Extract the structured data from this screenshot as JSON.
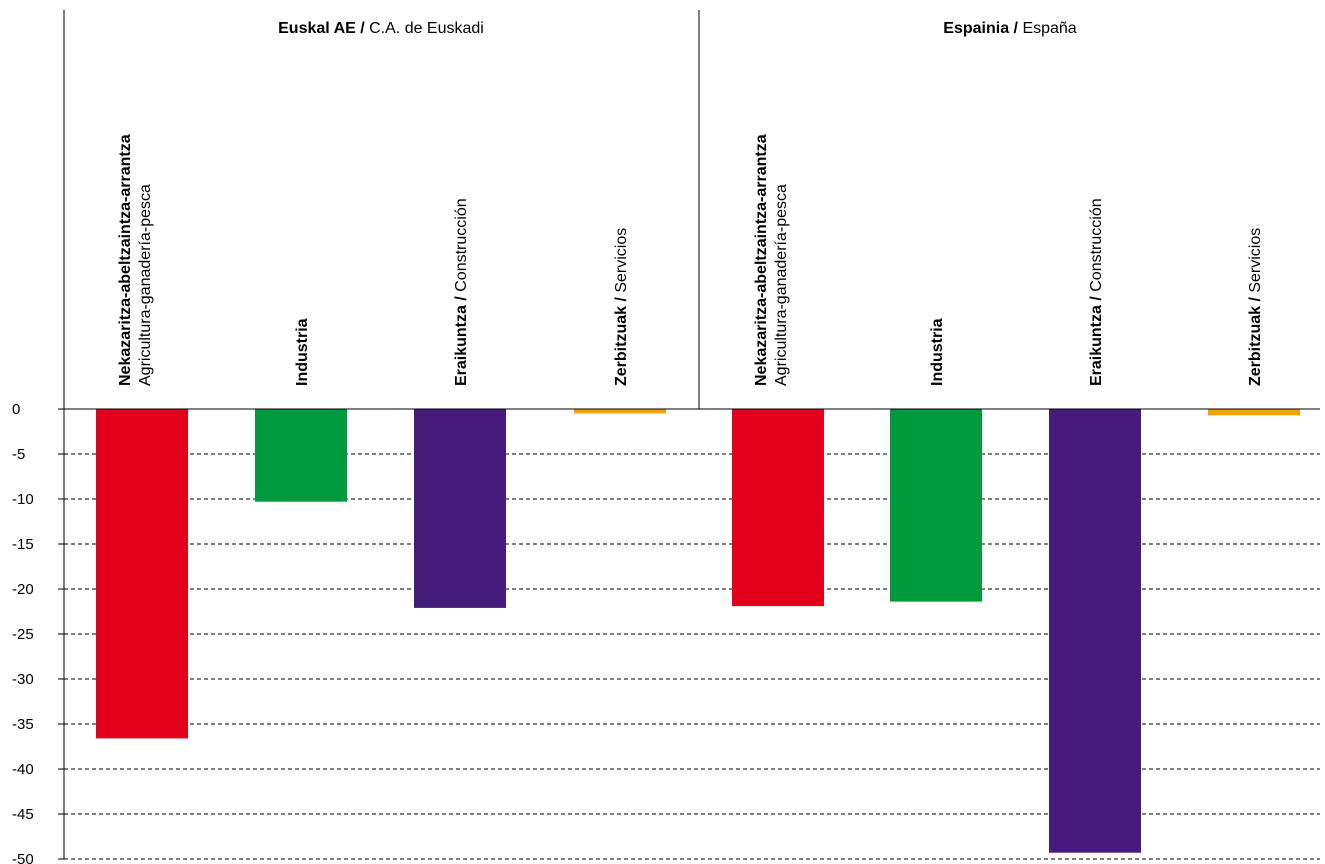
{
  "chart_data": {
    "type": "bar",
    "ylim": [
      -50,
      0
    ],
    "yticks": [
      0,
      -5,
      -10,
      -15,
      -20,
      -25,
      -30,
      -35,
      -40,
      -45,
      -50
    ],
    "grid": true,
    "groups": [
      {
        "title_bold": "Euskal AE /",
        "title_normal": "C.A. de Euskadi",
        "bars": [
          {
            "label_bold": "Nekazaritza-abeltzaintza-arrantza",
            "label_normal": "Agricultura-ganadería-pesca",
            "value": -36.6,
            "color": "#e2001a"
          },
          {
            "label_bold": "Industria",
            "label_normal": "",
            "value": -10.3,
            "color": "#009a3e"
          },
          {
            "label_bold": "Eraikuntza /",
            "label_normal": "Construcción",
            "value": -22.1,
            "color": "#451c7c"
          },
          {
            "label_bold": "Zerbitzuak /",
            "label_normal": "Servicios",
            "value": -0.5,
            "color": "#f5a200"
          }
        ]
      },
      {
        "title_bold": "Espainia /",
        "title_normal": "España",
        "bars": [
          {
            "label_bold": "Nekazaritza-abeltzaintza-arrantza",
            "label_normal": "Agricultura-ganadería-pesca",
            "value": -21.9,
            "color": "#e2001a"
          },
          {
            "label_bold": "Industria",
            "label_normal": "",
            "value": -21.4,
            "color": "#009a3e"
          },
          {
            "label_bold": "Eraikuntza /",
            "label_normal": "Construcción",
            "value": -49.3,
            "color": "#451c7c"
          },
          {
            "label_bold": "Zerbitzuak /",
            "label_normal": "Servicios",
            "value": -0.7,
            "color": "#f5a200"
          }
        ]
      }
    ]
  }
}
